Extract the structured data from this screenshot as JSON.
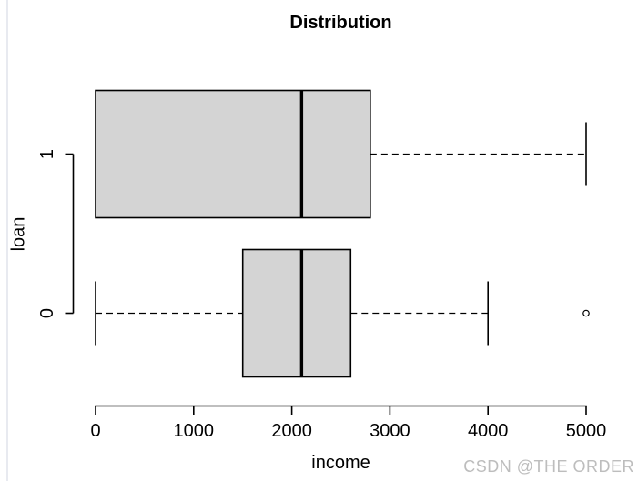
{
  "watermark": "CSDN @THE ORDER",
  "chart_data": {
    "type": "boxplot",
    "orientation": "horizontal",
    "title": "Distribution",
    "xlabel": "income",
    "ylabel": "loan",
    "xlim": [
      0,
      5000
    ],
    "x_ticks": [
      0,
      1000,
      2000,
      3000,
      4000,
      5000
    ],
    "grid": false,
    "groups": [
      {
        "label": "1",
        "min": 0,
        "q1": 0,
        "median": 2100,
        "q3": 2800,
        "max": 5000,
        "outliers": []
      },
      {
        "label": "0",
        "min": 0,
        "q1": 1500,
        "median": 2100,
        "q3": 2600,
        "max": 4000,
        "outliers": [
          5000
        ]
      }
    ],
    "colors": {
      "box_fill": "#d4d4d4",
      "line": "#000000",
      "watermark": "#bdbdbd"
    }
  }
}
